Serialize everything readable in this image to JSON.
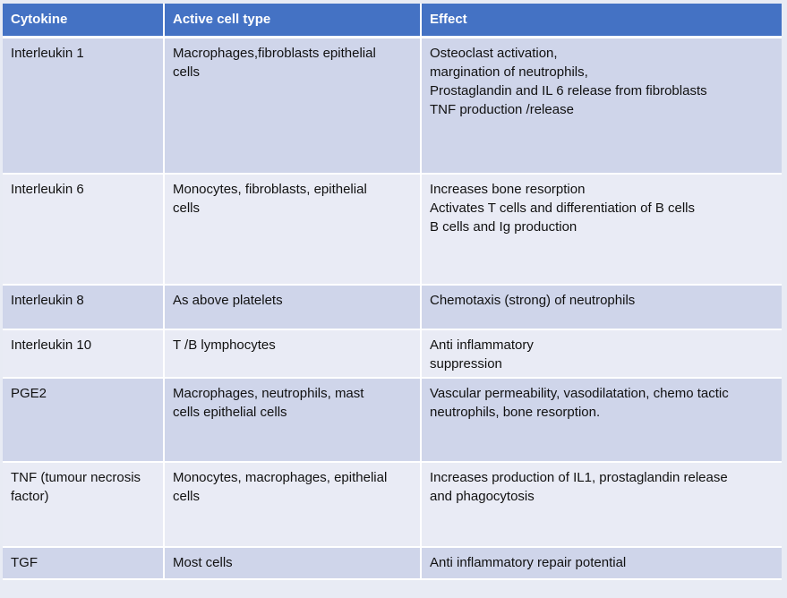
{
  "table": {
    "headers": {
      "cytokine": "Cytokine",
      "cell_type": "Active cell type",
      "effect": "Effect"
    },
    "rows": [
      {
        "cytokine": [
          "Interleukin 1"
        ],
        "cell_type": [
          "Macrophages,fibroblasts epithelial",
          "cells"
        ],
        "effect": [
          "Osteoclast activation,",
          "margination of neutrophils,",
          "Prostaglandin  and IL 6 release from fibroblasts",
          "TNF production /release"
        ]
      },
      {
        "cytokine": [
          "Interleukin 6"
        ],
        "cell_type": [
          "Monocytes, fibroblasts, epithelial",
          "cells"
        ],
        "effect": [
          "Increases bone resorption",
          "Activates T cells and differentiation of B cells",
          "B cells and Ig production"
        ]
      },
      {
        "cytokine": [
          "Interleukin 8"
        ],
        "cell_type": [
          "As above platelets"
        ],
        "effect": [
          "Chemotaxis (strong) of neutrophils"
        ]
      },
      {
        "cytokine": [
          "Interleukin 10"
        ],
        "cell_type": [
          "T /B lymphocytes"
        ],
        "effect": [
          "Anti inflammatory",
          "suppression"
        ]
      },
      {
        "cytokine": [
          "PGE2"
        ],
        "cell_type": [
          "Macrophages, neutrophils, mast",
          "cells epithelial cells"
        ],
        "effect": [
          "Vascular permeability, vasodilatation, chemo tactic",
          "neutrophils, bone resorption."
        ]
      },
      {
        "cytokine": [
          "TNF (tumour necrosis",
          "factor)"
        ],
        "cell_type": [
          "Monocytes, macrophages, epithelial",
          "cells"
        ],
        "effect": [
          "Increases production of IL1, prostaglandin release",
          "and phagocytosis"
        ]
      },
      {
        "cytokine": [
          "TGF"
        ],
        "cell_type": [
          "Most cells"
        ],
        "effect": [
          "Anti inflammatory repair potential"
        ]
      }
    ]
  }
}
